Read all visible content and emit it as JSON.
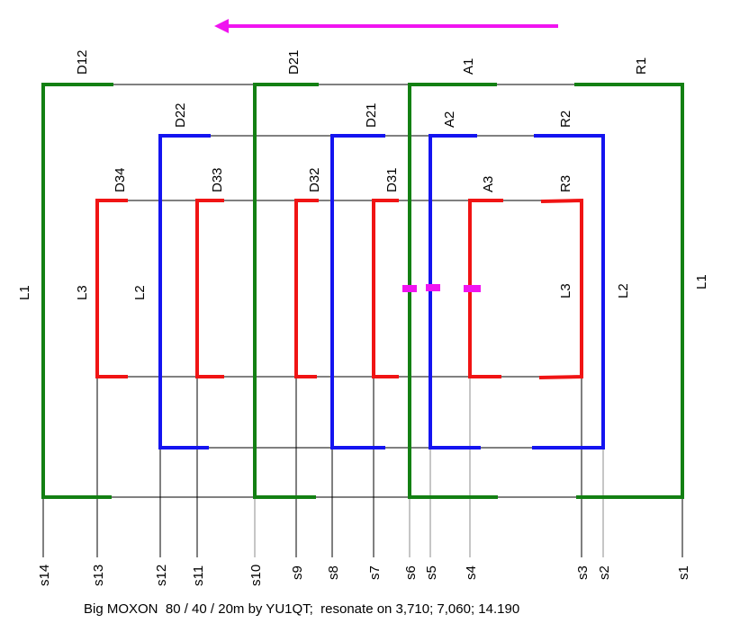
{
  "caption": "Big MOXON  80 / 40 / 20m by YU1QT;  resonate on 3,710; 7,060; 14.190",
  "colors": {
    "band80": "#138013",
    "band40": "#1414f0",
    "band20": "#f01414",
    "feed": "#f014f0",
    "boom": "#000000"
  },
  "direction_icon": "arrow-left-icon",
  "element_labels": {
    "green": [
      "D12",
      "D21",
      "A1",
      "R1"
    ],
    "blue": [
      "D22",
      "D21",
      "A2",
      "R2"
    ],
    "red": [
      "D34",
      "D33",
      "D32",
      "D31",
      "A3",
      "R3"
    ]
  },
  "side_labels": {
    "left": [
      "L1",
      "L2",
      "L3"
    ],
    "right": [
      "L3",
      "L2",
      "L1"
    ]
  },
  "stations": [
    "s14",
    "s13",
    "s12",
    "s11",
    "s10",
    "s9",
    "s8",
    "s7",
    "s6",
    "s5",
    "s4",
    "s3",
    "s2",
    "s1"
  ]
}
